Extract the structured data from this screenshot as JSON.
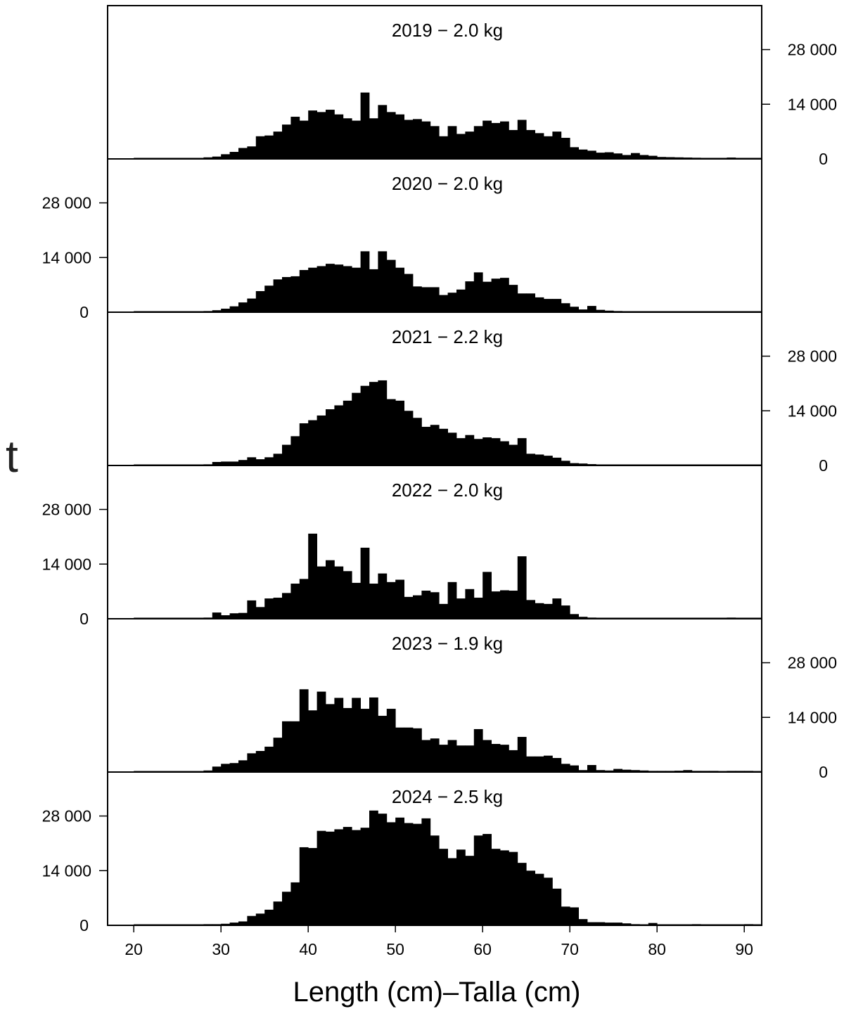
{
  "chart_data": {
    "type": "bar",
    "xlabel": "Length (cm)–Talla (cm)",
    "ylabel": "t",
    "xlim": [
      17,
      92
    ],
    "ylim": [
      0,
      38000
    ],
    "x_ticks": [
      20,
      30,
      40,
      50,
      60,
      70,
      80,
      90
    ],
    "y_ticks": [
      0,
      14000,
      28000
    ],
    "y_tick_labels": [
      "0",
      "14 000",
      "28 000"
    ],
    "bin_start": 20,
    "bin_width": 1,
    "panels": [
      {
        "title": "2019 − 2.0 kg",
        "y_axis_side": "right",
        "values": [
          100,
          100,
          100,
          100,
          100,
          100,
          100,
          200,
          400,
          600,
          1200,
          1800,
          2800,
          3200,
          5800,
          6000,
          7000,
          8800,
          10800,
          9800,
          12400,
          12000,
          12600,
          11400,
          10400,
          9800,
          17000,
          10400,
          13800,
          12000,
          11400,
          10000,
          10200,
          9600,
          8400,
          5800,
          8400,
          6400,
          7000,
          8400,
          9800,
          9200,
          9600,
          7400,
          10000,
          7400,
          6600,
          5800,
          7000,
          5400,
          3000,
          2400,
          2100,
          1600,
          1700,
          1400,
          1000,
          1500,
          1000,
          800,
          500,
          450,
          400,
          350,
          300,
          250,
          250,
          200,
          350,
          200,
          150,
          100
        ]
      },
      {
        "title": "2020 − 2.0  kg",
        "y_axis_side": "left",
        "values": [
          100,
          100,
          100,
          100,
          100,
          100,
          100,
          200,
          300,
          500,
          900,
          1500,
          2500,
          3500,
          5400,
          6800,
          8400,
          9000,
          9200,
          10800,
          11400,
          11800,
          12400,
          12200,
          11800,
          11400,
          15600,
          11000,
          15600,
          13400,
          11400,
          9800,
          6600,
          6400,
          6400,
          4400,
          5000,
          5800,
          7900,
          10200,
          7800,
          8600,
          8800,
          7000,
          4800,
          4800,
          3800,
          3400,
          3400,
          2300,
          1400,
          700,
          1600,
          600,
          400,
          300,
          250,
          200,
          200,
          150,
          150,
          200,
          100,
          100,
          100,
          100,
          100,
          100,
          100,
          100,
          100,
          100
        ]
      },
      {
        "title": "2021 − 2.2 kg",
        "y_axis_side": "right",
        "values": [
          100,
          100,
          100,
          100,
          100,
          100,
          100,
          200,
          300,
          900,
          1000,
          1000,
          1400,
          2100,
          1600,
          2100,
          3000,
          5300,
          7500,
          10800,
          11600,
          12800,
          14400,
          15400,
          16600,
          18600,
          20400,
          21400,
          21800,
          17000,
          16600,
          14000,
          12200,
          9900,
          10400,
          9400,
          8400,
          7000,
          7800,
          6800,
          7200,
          7000,
          6200,
          5300,
          7000,
          3000,
          2800,
          2500,
          2000,
          1200,
          600,
          500,
          350,
          200,
          200,
          200,
          200,
          150,
          150,
          150,
          150,
          150,
          150,
          100,
          100,
          100,
          150,
          100,
          100,
          100,
          100,
          100
        ]
      },
      {
        "title": "2022 − 2.0  kg",
        "y_axis_side": "left",
        "values": [
          100,
          100,
          100,
          100,
          100,
          100,
          100,
          200,
          300,
          1600,
          900,
          1400,
          1500,
          4700,
          3000,
          5200,
          5400,
          6600,
          9000,
          10200,
          21800,
          13400,
          15000,
          13400,
          12200,
          9200,
          18200,
          9000,
          11600,
          9400,
          10000,
          5600,
          6000,
          7200,
          6800,
          3800,
          9400,
          5200,
          7600,
          5400,
          12000,
          7000,
          7300,
          7200,
          16000,
          4800,
          4000,
          3800,
          5200,
          3400,
          1200,
          500,
          300,
          200,
          200,
          200,
          200,
          200,
          200,
          200,
          200,
          200,
          200,
          200,
          200,
          200,
          200,
          200,
          300,
          200,
          200,
          100
        ]
      },
      {
        "title": "2023 − 1.9  kg",
        "y_axis_side": "right",
        "values": [
          100,
          100,
          100,
          100,
          100,
          100,
          100,
          200,
          400,
          1400,
          2100,
          2300,
          3000,
          4800,
          5400,
          6500,
          8800,
          13000,
          13000,
          21200,
          15800,
          20600,
          17400,
          19000,
          16400,
          19000,
          16200,
          19100,
          14400,
          16200,
          11400,
          11400,
          11200,
          8200,
          8600,
          7000,
          8200,
          6800,
          6800,
          11000,
          8200,
          7200,
          7000,
          5600,
          9000,
          4000,
          4000,
          4200,
          3600,
          2100,
          1700,
          500,
          1800,
          500,
          400,
          800,
          600,
          500,
          400,
          300,
          300,
          300,
          350,
          500,
          300,
          300,
          300,
          250,
          300,
          300,
          300,
          200
        ]
      },
      {
        "title": "2024 − 2.5  kg",
        "y_axis_side": "left",
        "values": [
          100,
          100,
          100,
          100,
          100,
          100,
          100,
          200,
          300,
          300,
          400,
          700,
          1000,
          2400,
          3000,
          4000,
          6100,
          8600,
          11000,
          20000,
          19800,
          24200,
          24000,
          24600,
          25200,
          24400,
          25000,
          29400,
          28600,
          26400,
          27600,
          26200,
          26000,
          27400,
          23000,
          19600,
          17200,
          19400,
          17800,
          23000,
          23400,
          19600,
          19200,
          18800,
          16000,
          14000,
          13200,
          12200,
          9400,
          4800,
          4600,
          1600,
          800,
          800,
          700,
          700,
          500,
          300,
          200,
          600,
          200,
          200,
          150,
          150,
          300,
          150,
          150,
          150,
          150,
          150,
          300,
          150
        ]
      }
    ]
  }
}
